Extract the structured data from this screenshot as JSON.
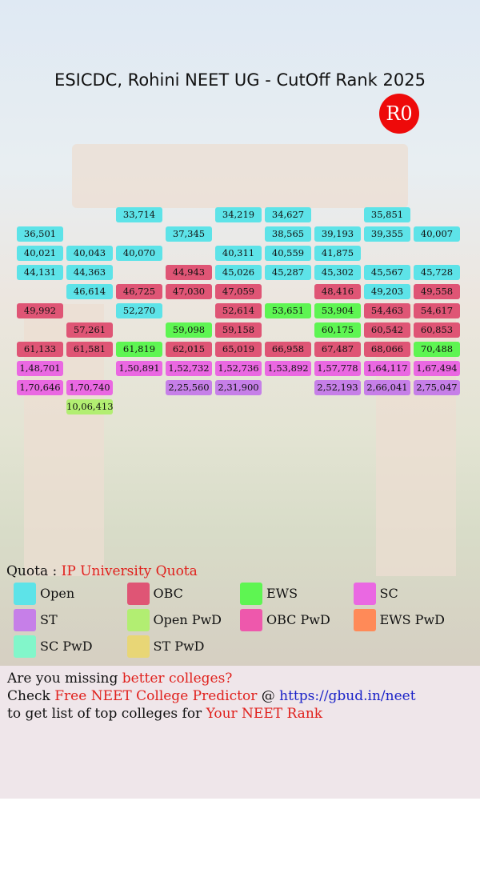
{
  "title": "ESICDC, Rohini NEET UG - CutOff Rank 2025",
  "badge": "R0",
  "grid": {
    "rows": [
      [
        null,
        null,
        {
          "rank": "33,714",
          "quota": 0
        },
        null,
        {
          "rank": "34,219",
          "quota": 0
        },
        {
          "rank": "34,627",
          "quota": 0
        },
        null,
        {
          "rank": "35,851",
          "quota": 0
        },
        null
      ],
      [
        {
          "rank": "36,501",
          "quota": 0
        },
        null,
        null,
        {
          "rank": "37,345",
          "quota": 0
        },
        null,
        {
          "rank": "38,565",
          "quota": 0
        },
        {
          "rank": "39,193",
          "quota": 0
        },
        {
          "rank": "39,355",
          "quota": 0
        },
        {
          "rank": "40,007",
          "quota": 0
        }
      ],
      [
        {
          "rank": "40,021",
          "quota": 0
        },
        {
          "rank": "40,043",
          "quota": 0
        },
        {
          "rank": "40,070",
          "quota": 0
        },
        null,
        {
          "rank": "40,311",
          "quota": 0
        },
        {
          "rank": "40,559",
          "quota": 0
        },
        {
          "rank": "41,875",
          "quota": 0
        },
        null,
        null
      ],
      [
        {
          "rank": "44,131",
          "quota": 0
        },
        {
          "rank": "44,363",
          "quota": 0
        },
        null,
        {
          "rank": "44,943",
          "quota": 1
        },
        {
          "rank": "45,026",
          "quota": 0
        },
        {
          "rank": "45,287",
          "quota": 0
        },
        {
          "rank": "45,302",
          "quota": 0
        },
        {
          "rank": "45,567",
          "quota": 0
        },
        {
          "rank": "45,728",
          "quota": 0
        }
      ],
      [
        null,
        {
          "rank": "46,614",
          "quota": 0
        },
        {
          "rank": "46,725",
          "quota": 1
        },
        {
          "rank": "47,030",
          "quota": 1
        },
        {
          "rank": "47,059",
          "quota": 1
        },
        null,
        {
          "rank": "48,416",
          "quota": 1
        },
        {
          "rank": "49,203",
          "quota": 0
        },
        {
          "rank": "49,558",
          "quota": 1
        }
      ],
      [
        {
          "rank": "49,992",
          "quota": 1
        },
        null,
        {
          "rank": "52,270",
          "quota": 0
        },
        null,
        {
          "rank": "52,614",
          "quota": 1
        },
        {
          "rank": "53,651",
          "quota": 2
        },
        {
          "rank": "53,904",
          "quota": 2
        },
        {
          "rank": "54,463",
          "quota": 1
        },
        {
          "rank": "54,617",
          "quota": 1
        }
      ],
      [
        null,
        {
          "rank": "57,261",
          "quota": 1
        },
        null,
        {
          "rank": "59,098",
          "quota": 2
        },
        {
          "rank": "59,158",
          "quota": 1
        },
        null,
        {
          "rank": "60,175",
          "quota": 2
        },
        {
          "rank": "60,542",
          "quota": 1
        },
        {
          "rank": "60,853",
          "quota": 1
        }
      ],
      [
        {
          "rank": "61,133",
          "quota": 1
        },
        {
          "rank": "61,581",
          "quota": 1
        },
        {
          "rank": "61,819",
          "quota": 2
        },
        {
          "rank": "62,015",
          "quota": 1
        },
        {
          "rank": "65,019",
          "quota": 1
        },
        {
          "rank": "66,958",
          "quota": 1
        },
        {
          "rank": "67,487",
          "quota": 1
        },
        {
          "rank": "68,066",
          "quota": 1
        },
        {
          "rank": "70,488",
          "quota": 2
        }
      ],
      [
        {
          "rank": "1,48,701",
          "quota": 3
        },
        null,
        {
          "rank": "1,50,891",
          "quota": 3
        },
        {
          "rank": "1,52,732",
          "quota": 3
        },
        {
          "rank": "1,52,736",
          "quota": 3
        },
        {
          "rank": "1,53,892",
          "quota": 3
        },
        {
          "rank": "1,57,778",
          "quota": 3
        },
        {
          "rank": "1,64,117",
          "quota": 3
        },
        {
          "rank": "1,67,494",
          "quota": 3
        }
      ],
      [
        {
          "rank": "1,70,646",
          "quota": 3
        },
        {
          "rank": "1,70,740",
          "quota": 3
        },
        null,
        {
          "rank": "2,25,560",
          "quota": 4
        },
        {
          "rank": "2,31,900",
          "quota": 4
        },
        null,
        {
          "rank": "2,52,193",
          "quota": 4
        },
        {
          "rank": "2,66,041",
          "quota": 4
        },
        {
          "rank": "2,75,047",
          "quota": 4
        }
      ],
      [
        null,
        {
          "rank": "10,06,413",
          "quota": 5
        },
        null,
        null,
        null,
        null,
        null,
        null,
        null
      ]
    ]
  },
  "quota": {
    "label": "Quota : ",
    "value": "IP University Quota"
  },
  "legend": [
    {
      "name": "Open",
      "color": "#5de3e8"
    },
    {
      "name": "OBC",
      "color": "#df5575"
    },
    {
      "name": "EWS",
      "color": "#5ef552"
    },
    {
      "name": "SC",
      "color": "#ea68e2"
    },
    {
      "name": "ST",
      "color": "#c67fe8"
    },
    {
      "name": "Open PwD",
      "color": "#b2ee72"
    },
    {
      "name": "OBC PwD",
      "color": "#ee58ac"
    },
    {
      "name": "EWS PwD",
      "color": "#ff8a58"
    },
    {
      "name": "SC PwD",
      "color": "#82f6ca"
    },
    {
      "name": "ST PwD",
      "color": "#e8d676"
    }
  ],
  "promo": {
    "lines": [
      [
        {
          "text": "Are you missing ",
          "color": "#111111"
        },
        {
          "text": "better colleges?",
          "color": "#e0201c"
        }
      ],
      [
        {
          "text": "Check ",
          "color": "#111111"
        },
        {
          "text": "Free NEET College Predictor",
          "color": "#e0201c"
        },
        {
          "text": " @ ",
          "color": "#111111"
        },
        {
          "text": "https://gbud.in/neet",
          "color": "#1a22c8"
        }
      ],
      [
        {
          "text": "to get list of top colleges for ",
          "color": "#111111"
        },
        {
          "text": "Your NEET Rank",
          "color": "#e0201c"
        }
      ]
    ]
  }
}
